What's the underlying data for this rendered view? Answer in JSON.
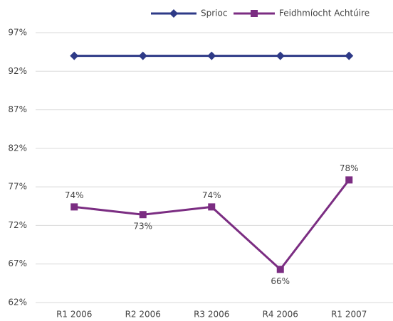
{
  "chart_data": {
    "type": "line",
    "categories": [
      "R1 2006",
      "R2 2006",
      "R3 2006",
      "R4 2006",
      "R1 2007"
    ],
    "series": [
      {
        "name": "Sprioc",
        "color": "#2e3a87",
        "marker": "diamond",
        "values": [
          94,
          94,
          94,
          94,
          94
        ]
      },
      {
        "name": "Feidhmíocht Achtúire",
        "color": "#7b2d82",
        "marker": "square",
        "values": [
          74.4,
          73.4,
          74.4,
          66.3,
          77.9
        ],
        "value_labels": [
          "74%",
          "73%",
          "74%",
          "66%",
          "78%"
        ]
      }
    ],
    "ylim": [
      62,
      97
    ],
    "yticks": [
      {
        "value": 62,
        "label": "62%"
      },
      {
        "value": 67,
        "label": "67%"
      },
      {
        "value": 72,
        "label": "72%"
      },
      {
        "value": 77,
        "label": "77%"
      },
      {
        "value": 82,
        "label": "82%"
      },
      {
        "value": 87,
        "label": "87%"
      },
      {
        "value": 92,
        "label": "92%"
      },
      {
        "value": 97,
        "label": "97%"
      }
    ],
    "grid": true,
    "legend": "top"
  }
}
